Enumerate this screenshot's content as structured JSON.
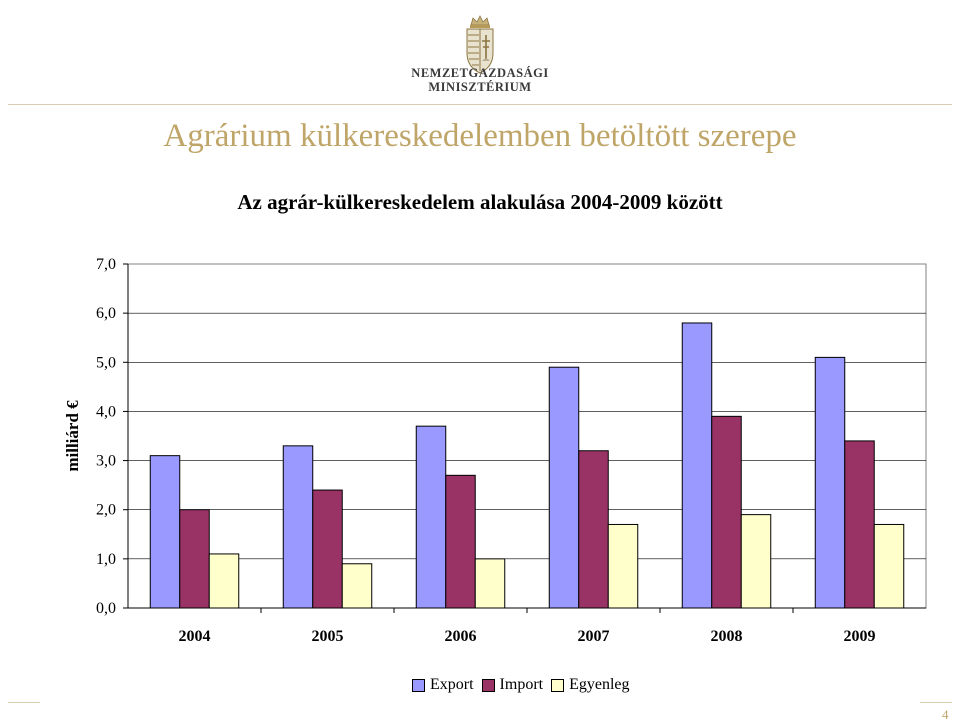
{
  "header": {
    "ministry_line1": "NEMZETGAZDASÁGI",
    "ministry_line2": "MINISZTÉRIUM",
    "logo_icon": "hungarian-coat-of-arms-icon"
  },
  "slide": {
    "title": "Agrárium külkereskedelemben betöltött szerepe",
    "page_number": "4"
  },
  "colors": {
    "export": "#9999ff",
    "import": "#993366",
    "balance": "#ffffcc",
    "title_gold": "#bfa568"
  },
  "chart_data": {
    "type": "bar",
    "title": "Az agrár-külkereskedelem alakulása 2004-2009 között",
    "xlabel": "",
    "ylabel": "milliárd €",
    "categories": [
      "2004",
      "2005",
      "2006",
      "2007",
      "2008",
      "2009"
    ],
    "series": [
      {
        "name": "Export",
        "values": [
          3.1,
          3.3,
          3.7,
          4.9,
          5.8,
          5.1
        ]
      },
      {
        "name": "Import",
        "values": [
          2.0,
          2.4,
          2.7,
          3.2,
          3.9,
          3.4
        ]
      },
      {
        "name": "Egyenleg",
        "values": [
          1.1,
          0.9,
          1.0,
          1.7,
          1.9,
          1.7
        ]
      }
    ],
    "ylim": [
      0,
      7
    ],
    "yticks": [
      "0,0",
      "1,0",
      "2,0",
      "3,0",
      "4,0",
      "5,0",
      "6,0",
      "7,0"
    ],
    "grid": true,
    "legend_position": "bottom"
  }
}
